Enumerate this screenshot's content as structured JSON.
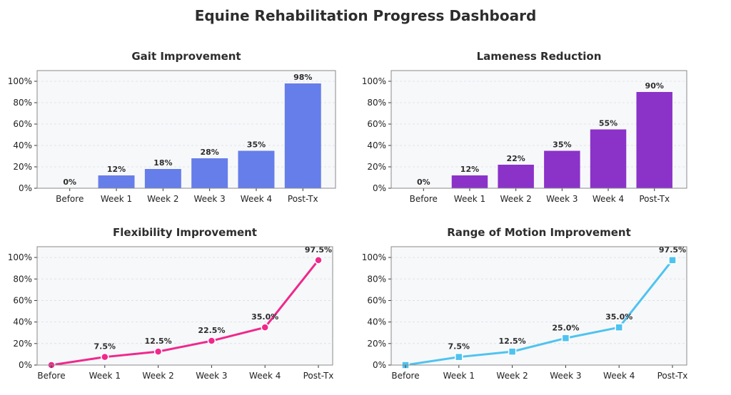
{
  "dashboard": {
    "title": "Equine Rehabilitation Progress Dashboard"
  },
  "chart_data": [
    {
      "type": "bar",
      "title": "Gait Improvement",
      "categories": [
        "Before",
        "Week 1",
        "Week 2",
        "Week 3",
        "Week 4",
        "Post-Tx"
      ],
      "values": [
        0,
        12,
        18,
        28,
        35,
        98
      ],
      "labels": [
        "0%",
        "12%",
        "18%",
        "28%",
        "35%",
        "98%"
      ],
      "ylim": [
        0,
        110
      ],
      "yticks": [
        "0%",
        "20%",
        "40%",
        "60%",
        "80%",
        "100%"
      ],
      "color": "#667eea",
      "grid": true
    },
    {
      "type": "bar",
      "title": "Lameness Reduction",
      "categories": [
        "Before",
        "Week 1",
        "Week 2",
        "Week 3",
        "Week 4",
        "Post-Tx"
      ],
      "values": [
        0,
        12,
        22,
        35,
        55,
        90
      ],
      "labels": [
        "0%",
        "12%",
        "22%",
        "35%",
        "55%",
        "90%"
      ],
      "ylim": [
        0,
        110
      ],
      "yticks": [
        "0%",
        "20%",
        "40%",
        "60%",
        "80%",
        "100%"
      ],
      "color": "#8b32c8",
      "grid": true
    },
    {
      "type": "line",
      "title": "Flexibility Improvement",
      "categories": [
        "Before",
        "Week 1",
        "Week 2",
        "Week 3",
        "Week 4",
        "Post-Tx"
      ],
      "values": [
        0,
        7.5,
        12.5,
        22.5,
        35.0,
        97.5
      ],
      "labels": [
        "",
        "7.5%",
        "12.5%",
        "22.5%",
        "35.0%",
        "97.5%"
      ],
      "ylim": [
        0,
        110
      ],
      "yticks": [
        "0%",
        "20%",
        "40%",
        "60%",
        "80%",
        "100%"
      ],
      "color": "#f0288c",
      "marker": "circle",
      "grid": true
    },
    {
      "type": "line",
      "title": "Range of Motion Improvement",
      "categories": [
        "Before",
        "Week 1",
        "Week 2",
        "Week 3",
        "Week 4",
        "Post-Tx"
      ],
      "values": [
        0,
        7.5,
        12.5,
        25.0,
        35.0,
        97.5
      ],
      "labels": [
        "",
        "7.5%",
        "12.5%",
        "25.0%",
        "35.0%",
        "97.5%"
      ],
      "ylim": [
        0,
        110
      ],
      "yticks": [
        "0%",
        "20%",
        "40%",
        "60%",
        "80%",
        "100%"
      ],
      "color": "#4fc3f0",
      "marker": "square",
      "grid": true
    }
  ]
}
